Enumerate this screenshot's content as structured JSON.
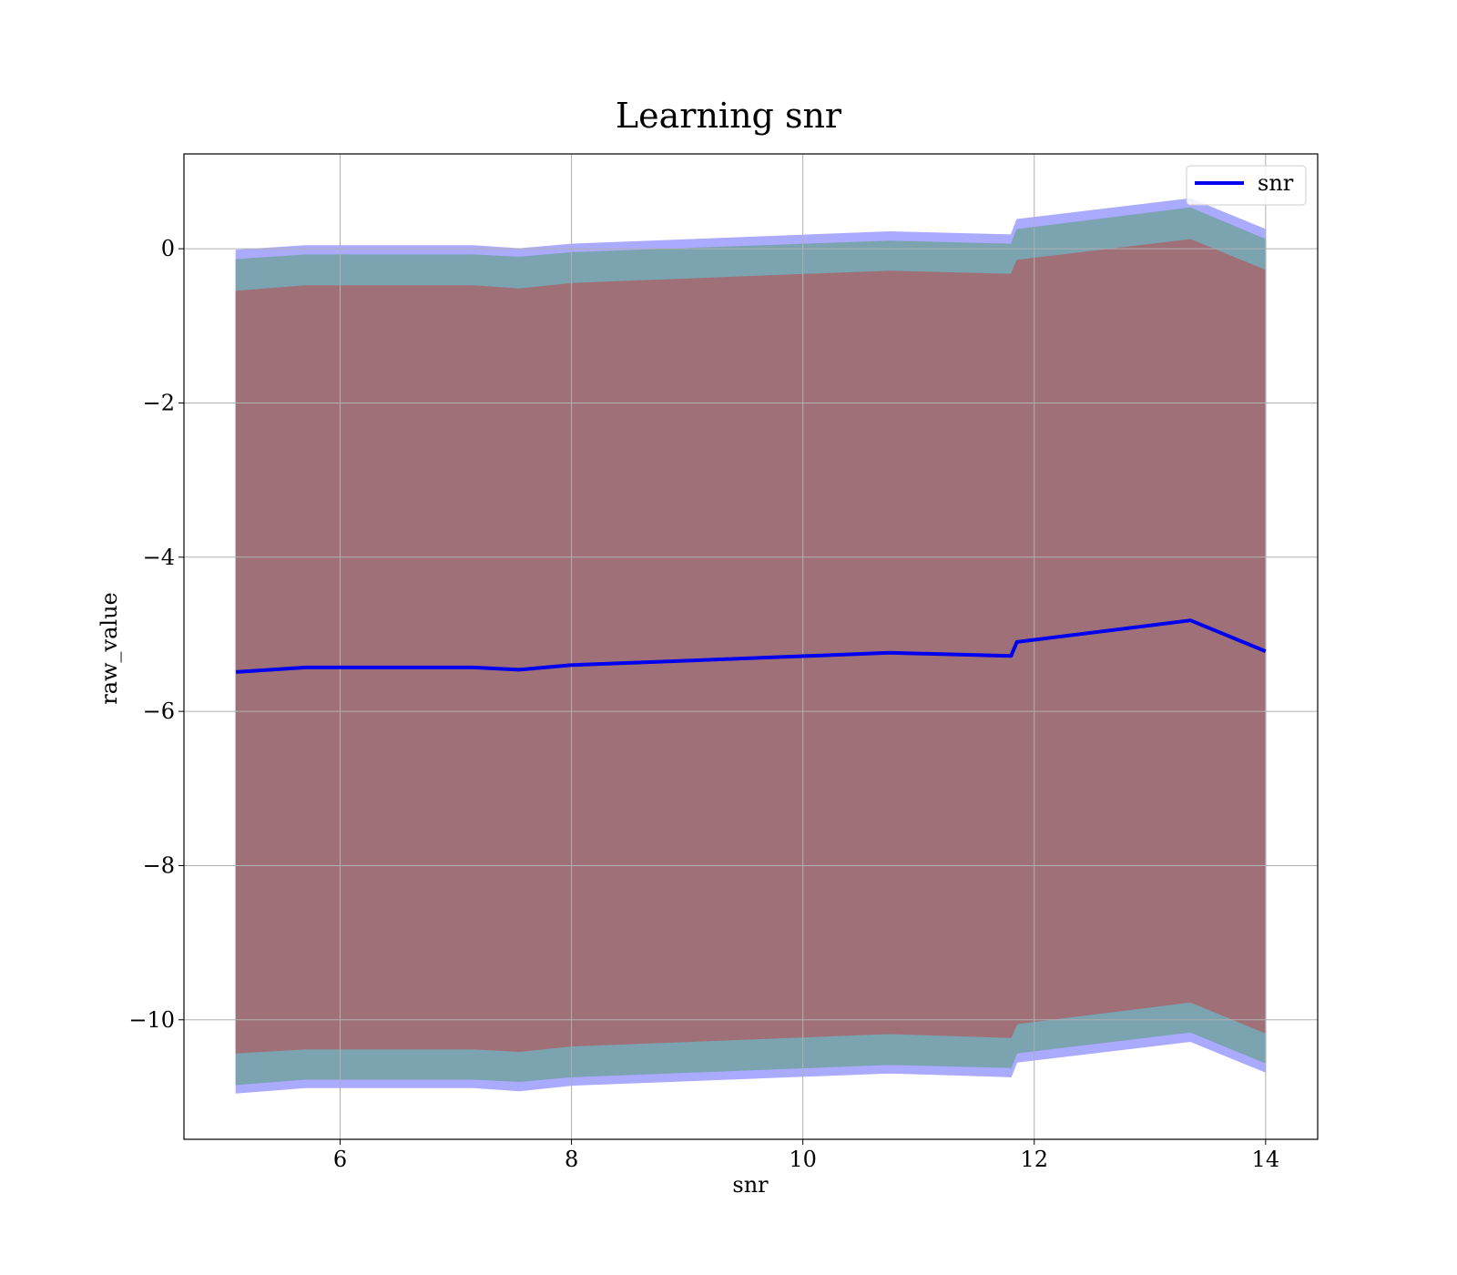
{
  "chart_data": {
    "type": "area",
    "title": "Learning snr",
    "xlabel": "snr",
    "ylabel": "raw_value",
    "xlim": [
      4.65,
      14.45
    ],
    "ylim": [
      -11.55,
      1.23
    ],
    "x_ticks": [
      6,
      8,
      10,
      12,
      14
    ],
    "x_tick_labels": [
      "6",
      "8",
      "10",
      "12",
      "14"
    ],
    "y_ticks": [
      0,
      -2,
      -4,
      -6,
      -8,
      -10
    ],
    "y_tick_labels": [
      "0",
      "−2",
      "−4",
      "−6",
      "−8",
      "−10"
    ],
    "grid": true,
    "legend": {
      "placement": "top-right",
      "entries": [
        "snr"
      ]
    },
    "x": [
      5.1,
      5.7,
      7.15,
      7.55,
      8.0,
      10.75,
      11.8,
      11.85,
      13.35,
      14.0
    ],
    "series": [
      {
        "name": "snr",
        "color": "#0000ee",
        "values": [
          -5.49,
          -5.43,
          -5.43,
          -5.46,
          -5.4,
          -5.24,
          -5.28,
          -5.1,
          -4.82,
          -5.22
        ]
      }
    ],
    "bands": [
      {
        "color": "#aaaaff",
        "upper": [
          -0.02,
          0.04,
          0.04,
          0.0,
          0.06,
          0.22,
          0.18,
          0.38,
          0.65,
          0.25
        ],
        "lower": [
          -10.95,
          -10.88,
          -10.88,
          -10.92,
          -10.85,
          -10.69,
          -10.74,
          -10.55,
          -10.28,
          -10.68
        ]
      },
      {
        "color": "#7ba3b0",
        "upper": [
          -0.14,
          -0.08,
          -0.08,
          -0.11,
          -0.05,
          0.1,
          0.06,
          0.25,
          0.53,
          0.12
        ],
        "lower": [
          -10.84,
          -10.77,
          -10.77,
          -10.8,
          -10.74,
          -10.58,
          -10.62,
          -10.43,
          -10.16,
          -10.56
        ]
      },
      {
        "color": "#a07078",
        "upper": [
          -0.55,
          -0.48,
          -0.48,
          -0.52,
          -0.45,
          -0.29,
          -0.33,
          -0.15,
          0.12,
          -0.28
        ],
        "lower": [
          -10.43,
          -10.38,
          -10.38,
          -10.41,
          -10.34,
          -10.18,
          -10.23,
          -10.05,
          -9.77,
          -10.17
        ]
      }
    ]
  }
}
